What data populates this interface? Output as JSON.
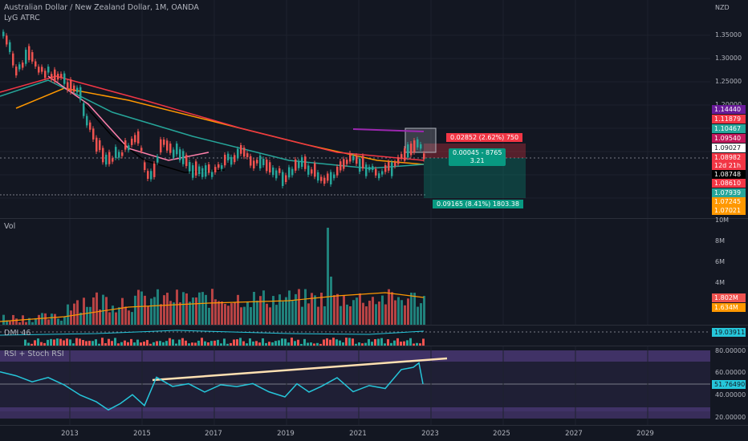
{
  "header": {
    "symbol_title": "Australian Dollar / New Zealand Dollar, 1M, OANDA",
    "indicator_name": "LyG ATRC",
    "currency": "NZD"
  },
  "price_axis": {
    "ticks": [
      "1.35000",
      "1.30000",
      "1.25000",
      "1.20000"
    ],
    "labels": [
      {
        "text": "1.14440",
        "color": "#6a1b9a"
      },
      {
        "text": "1.11879",
        "color": "#f23645"
      },
      {
        "text": "1.10467",
        "color": "#26a69a"
      },
      {
        "text": "1.09540",
        "color": "#c2185b"
      },
      {
        "text": "1.09027",
        "color": "#ffffff"
      },
      {
        "text": "1.08982",
        "color": "#f23645"
      },
      {
        "text": "12d 21h",
        "color": "#f23645"
      },
      {
        "text": "1.08748",
        "color": "#000000"
      },
      {
        "text": "1.08610",
        "color": "#f23645"
      },
      {
        "text": "1.07939",
        "color": "#26a69a"
      },
      {
        "text": "1.07245",
        "color": "#ff9800"
      },
      {
        "text": "1.07021",
        "color": "#ff9800"
      }
    ]
  },
  "position_tool": {
    "stop_label": "0.02852 (2.62%) 750",
    "center_line1": "0.00045 - 8765",
    "center_line2": "3.21",
    "target_label": "0.09165 (8.41%) 1803.38"
  },
  "volume_pane": {
    "title": "Vol",
    "ticks": [
      "10M",
      "8M",
      "6M",
      "4M"
    ],
    "labels": [
      {
        "text": "1.802M",
        "color": "#ef5350"
      },
      {
        "text": "1.634M",
        "color": "#ff9800"
      }
    ]
  },
  "dmi_pane": {
    "title": "DMI 46",
    "value": "19.03911"
  },
  "rsi_pane": {
    "title": "RSI + Stoch RSI",
    "ticks": [
      "80.00000",
      "60.00000",
      "40.00000",
      "20.00000"
    ],
    "value": "51.76490"
  },
  "time_axis": {
    "years": [
      "2013",
      "2015",
      "2017",
      "2019",
      "2021",
      "2023",
      "2025",
      "2027",
      "2029"
    ]
  }
}
